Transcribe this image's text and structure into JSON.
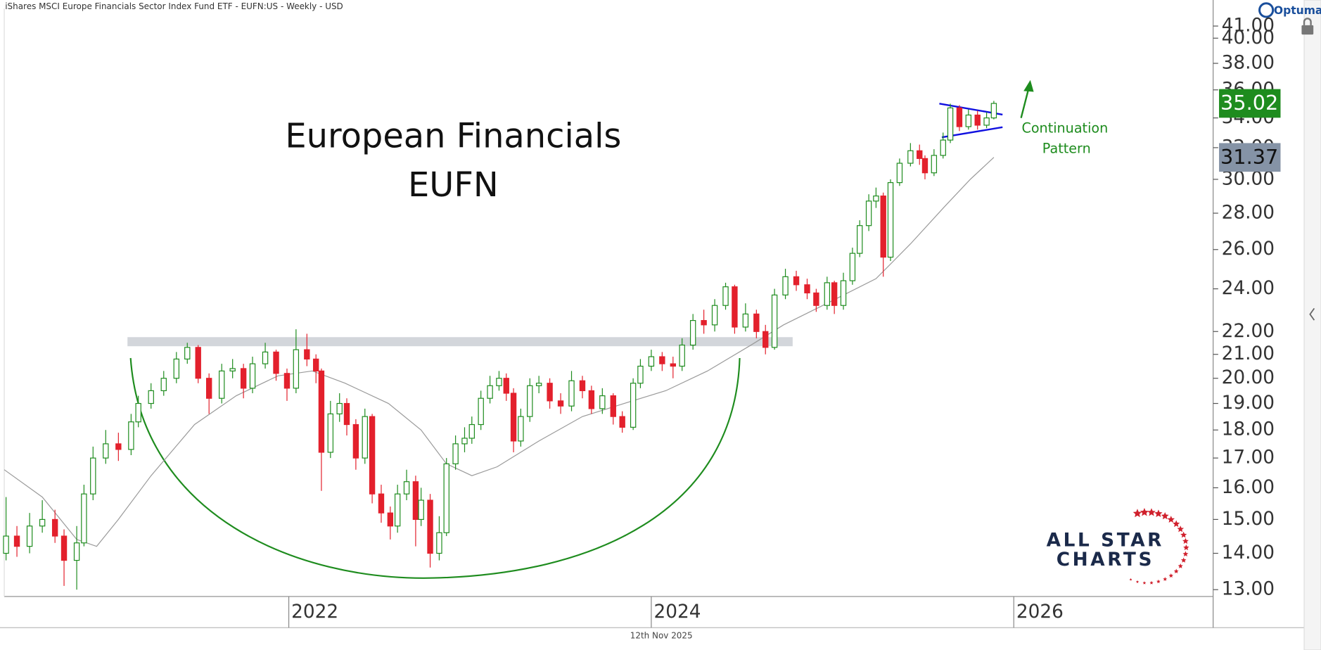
{
  "chart_data": {
    "type": "candlestick",
    "title": "iShares MSCI Europe Financials Sector Index Fund ETF - EUFN:US - Weekly - USD",
    "platform": "Optuma",
    "footer_date": "12th Nov 2025",
    "headline": [
      "European Financials",
      "EUFN"
    ],
    "pattern_note": [
      "Continuation",
      "Pattern"
    ],
    "logo": [
      "ALL STAR",
      "CHARTS"
    ],
    "log_scale": true,
    "up_color": "#1e8c1e",
    "down_color": "#e3202c",
    "xlim": [
      2020.43,
      2027.1
    ],
    "xticks": [
      2022,
      2024,
      2026
    ],
    "ylim": [
      12.82,
      42.5
    ],
    "yticks": [
      {
        "value": 13,
        "label": "13.00"
      },
      {
        "value": 14,
        "label": "14.00"
      },
      {
        "value": 15,
        "label": "15.00"
      },
      {
        "value": 16,
        "label": "16.00"
      },
      {
        "value": 17,
        "label": "17.00"
      },
      {
        "value": 18,
        "label": "18.00"
      },
      {
        "value": 19,
        "label": "19.00"
      },
      {
        "value": 20,
        "label": "20.00"
      },
      {
        "value": 21,
        "label": "21.00"
      },
      {
        "value": 22,
        "label": "22.00"
      },
      {
        "value": 24,
        "label": "24.00"
      },
      {
        "value": 26,
        "label": "26.00"
      },
      {
        "value": 28,
        "label": "28.00"
      },
      {
        "value": 30,
        "label": "30.00"
      },
      {
        "value": 32,
        "label": "32.00"
      },
      {
        "value": 34,
        "label": "34.00"
      },
      {
        "value": 36,
        "label": "36.00"
      },
      {
        "value": 38,
        "label": "38.00"
      },
      {
        "value": 40,
        "label": "40.00"
      },
      {
        "value": 41,
        "label": "41.00"
      }
    ],
    "x": [
      2020.44,
      2020.5,
      2020.57,
      2020.64,
      2020.71,
      2020.76,
      2020.83,
      2020.87,
      2020.92,
      2020.99,
      2021.06,
      2021.13,
      2021.17,
      2021.24,
      2021.31,
      2021.38,
      2021.44,
      2021.5,
      2021.56,
      2021.63,
      2021.69,
      2021.75,
      2021.8,
      2021.87,
      2021.93,
      2021.99,
      2022.04,
      2022.1,
      2022.15,
      2022.18,
      2022.23,
      2022.28,
      2022.32,
      2022.37,
      2022.42,
      2022.46,
      2022.51,
      2022.56,
      2022.6,
      2022.65,
      2022.7,
      2022.73,
      2022.78,
      2022.83,
      2022.87,
      2022.92,
      2022.97,
      2023.01,
      2023.06,
      2023.11,
      2023.16,
      2023.2,
      2023.24,
      2023.28,
      2023.33,
      2023.38,
      2023.44,
      2023.5,
      2023.56,
      2023.62,
      2023.67,
      2023.73,
      2023.79,
      2023.84,
      2023.9,
      2023.94,
      2024.0,
      2024.06,
      2024.12,
      2024.17,
      2024.23,
      2024.29,
      2024.35,
      2024.41,
      2024.46,
      2024.52,
      2024.58,
      2024.63,
      2024.68,
      2024.74,
      2024.8,
      2024.86,
      2024.91,
      2024.97,
      2025.01,
      2025.06,
      2025.11,
      2025.15,
      2025.2,
      2025.24,
      2025.28,
      2025.32,
      2025.37,
      2025.43,
      2025.48,
      2025.51,
      2025.56,
      2025.61,
      2025.65,
      2025.7,
      2025.75,
      2025.8,
      2025.85,
      2025.89
    ],
    "open": [
      14.0,
      14.5,
      14.2,
      14.8,
      15.0,
      14.5,
      13.8,
      14.3,
      15.8,
      17.0,
      17.5,
      17.3,
      18.3,
      19.0,
      19.5,
      20.0,
      20.8,
      21.3,
      20.0,
      19.2,
      20.3,
      20.4,
      19.6,
      20.6,
      21.1,
      20.2,
      19.6,
      21.2,
      20.8,
      20.3,
      17.2,
      18.6,
      19.0,
      18.2,
      17.0,
      18.5,
      15.8,
      15.2,
      14.8,
      15.8,
      16.2,
      15.0,
      15.6,
      14.0,
      14.6,
      16.8,
      17.5,
      17.7,
      18.2,
      19.2,
      19.7,
      20.0,
      19.4,
      17.6,
      18.5,
      19.7,
      19.8,
      19.1,
      18.9,
      19.9,
      19.5,
      18.8,
      19.3,
      18.5,
      18.1,
      19.8,
      20.5,
      20.9,
      20.6,
      20.5,
      21.4,
      22.5,
      22.3,
      23.2,
      24.1,
      22.2,
      22.8,
      22.0,
      21.3,
      23.7,
      24.6,
      24.2,
      23.8,
      23.2,
      24.3,
      23.2,
      24.4,
      25.8,
      27.3,
      28.7,
      29.0,
      25.6,
      29.8,
      31.0,
      31.8,
      31.3,
      30.4,
      31.5,
      32.5,
      34.7,
      33.4,
      34.2,
      33.5,
      34.0
    ],
    "high": [
      15.7,
      14.8,
      15.2,
      15.6,
      15.3,
      14.7,
      14.8,
      16.1,
      17.4,
      18.0,
      17.9,
      18.6,
      19.3,
      19.8,
      20.3,
      21.1,
      21.5,
      21.4,
      20.2,
      20.6,
      20.8,
      20.6,
      20.9,
      21.5,
      21.2,
      20.4,
      22.1,
      21.9,
      21.0,
      20.4,
      19.1,
      19.4,
      19.2,
      18.4,
      18.8,
      18.6,
      16.1,
      15.4,
      16.1,
      16.6,
      16.4,
      16.0,
      15.8,
      15.1,
      17.0,
      17.8,
      18.1,
      18.5,
      19.5,
      20.1,
      20.3,
      20.2,
      19.6,
      18.8,
      20.0,
      20.1,
      20.0,
      19.4,
      20.3,
      20.1,
      19.7,
      19.6,
      19.4,
      18.7,
      20.0,
      20.8,
      21.2,
      21.1,
      20.9,
      21.7,
      22.8,
      23.0,
      23.5,
      24.3,
      24.2,
      23.3,
      23.0,
      22.3,
      24.0,
      25.0,
      24.9,
      24.5,
      24.0,
      24.6,
      24.4,
      24.8,
      26.1,
      27.6,
      29.1,
      29.5,
      29.2,
      30.0,
      31.3,
      32.3,
      32.2,
      31.5,
      31.9,
      33.0,
      35.0,
      34.9,
      34.6,
      34.5,
      34.4,
      35.2
    ],
    "low": [
      13.8,
      13.9,
      14.0,
      14.6,
      14.3,
      13.1,
      13.0,
      14.2,
      15.6,
      16.8,
      16.9,
      17.1,
      18.1,
      18.8,
      19.3,
      19.8,
      20.6,
      19.8,
      18.6,
      19.0,
      20.0,
      19.2,
      19.4,
      20.4,
      19.9,
      19.1,
      19.4,
      20.5,
      19.8,
      15.9,
      17.0,
      18.3,
      17.8,
      16.6,
      16.8,
      15.5,
      14.9,
      14.4,
      14.6,
      15.6,
      14.2,
      14.8,
      13.6,
      13.8,
      14.5,
      16.6,
      17.2,
      17.5,
      18.0,
      19.0,
      19.5,
      19.1,
      17.2,
      17.4,
      18.3,
      19.4,
      18.8,
      18.6,
      18.7,
      19.2,
      18.6,
      18.6,
      18.2,
      17.9,
      18.0,
      19.6,
      20.3,
      20.3,
      20.0,
      20.3,
      21.2,
      21.9,
      22.0,
      23.0,
      21.9,
      22.0,
      21.7,
      21.0,
      21.2,
      23.5,
      23.9,
      23.5,
      22.9,
      23.0,
      22.8,
      23.0,
      24.2,
      25.6,
      27.0,
      28.3,
      24.6,
      25.4,
      29.6,
      30.8,
      30.9,
      30.0,
      30.2,
      31.3,
      32.3,
      33.1,
      33.2,
      33.2,
      33.3,
      33.9
    ],
    "close": [
      14.5,
      14.2,
      14.8,
      15.0,
      14.5,
      13.8,
      14.3,
      15.8,
      17.0,
      17.5,
      17.3,
      18.3,
      19.0,
      19.5,
      20.0,
      20.8,
      21.3,
      20.0,
      19.2,
      20.3,
      20.4,
      19.6,
      20.6,
      21.1,
      20.2,
      19.6,
      21.2,
      20.8,
      20.3,
      17.2,
      18.6,
      19.0,
      18.2,
      17.0,
      18.5,
      15.8,
      15.2,
      14.8,
      15.8,
      16.2,
      15.0,
      15.6,
      14.0,
      14.6,
      16.8,
      17.5,
      17.7,
      18.2,
      19.2,
      19.7,
      20.0,
      19.4,
      17.6,
      18.5,
      19.7,
      19.8,
      19.1,
      18.9,
      19.9,
      19.5,
      18.8,
      19.3,
      18.5,
      18.1,
      19.8,
      20.5,
      20.9,
      20.6,
      20.5,
      21.4,
      22.5,
      22.3,
      23.2,
      24.1,
      22.2,
      22.8,
      22.0,
      21.3,
      23.7,
      24.6,
      24.2,
      23.8,
      23.2,
      24.3,
      23.2,
      24.4,
      25.8,
      27.3,
      28.7,
      29.0,
      25.6,
      29.8,
      31.0,
      31.8,
      31.3,
      30.4,
      31.5,
      32.5,
      34.7,
      33.4,
      34.2,
      33.5,
      34.0,
      35.02
    ],
    "overlays": [
      {
        "color": "#9a9a9a",
        "box_color": "#8593a6",
        "x": [
          2020.43,
          2020.64,
          2020.83,
          2020.94,
          2021.06,
          2021.24,
          2021.48,
          2021.71,
          2021.94,
          2022.13,
          2022.31,
          2022.55,
          2022.73,
          2022.87,
          2023.01,
          2023.15,
          2023.38,
          2023.62,
          2023.85,
          2024.08,
          2024.31,
          2024.55,
          2024.73,
          2024.97,
          2025.24,
          2025.43,
          2025.62,
          2025.76,
          2025.89
        ],
        "values": [
          16.6,
          15.7,
          14.4,
          14.2,
          15.0,
          16.4,
          18.2,
          19.3,
          20.1,
          20.3,
          19.8,
          19.0,
          18.0,
          16.8,
          16.4,
          16.7,
          17.6,
          18.5,
          19.0,
          19.5,
          20.3,
          21.4,
          22.3,
          23.3,
          24.5,
          26.3,
          28.4,
          30.0,
          31.37
        ]
      }
    ],
    "zones": [
      {
        "color": "#d3d6db",
        "x": [
          2021.11,
          2024.78
        ],
        "y": [
          21.35,
          21.75
        ]
      }
    ]
  }
}
